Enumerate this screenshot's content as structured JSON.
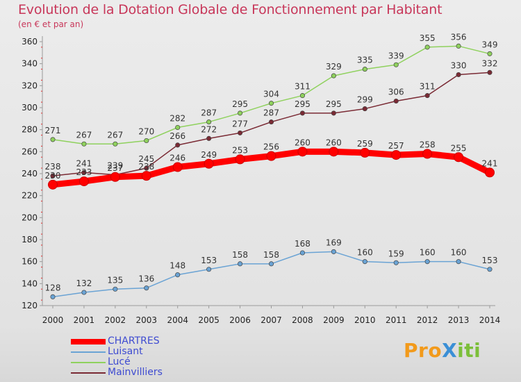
{
  "page": {
    "title": "Evolution de la Dotation Globale de Fonctionnement par Habitant",
    "subtitle": "(en € et par an)",
    "logo": "ProXiti"
  },
  "chart_data": {
    "type": "line",
    "title": "Evolution de la Dotation Globale de Fonctionnement par Habitant",
    "subtitle": "(en € et par an)",
    "x": [
      2000,
      2001,
      2002,
      2003,
      2004,
      2005,
      2006,
      2007,
      2008,
      2009,
      2010,
      2011,
      2012,
      2013,
      2014
    ],
    "ylim": [
      120,
      360
    ],
    "yticks": [
      120,
      140,
      160,
      180,
      200,
      220,
      240,
      260,
      280,
      300,
      320,
      340,
      360
    ],
    "grid": false,
    "legend_position": "bottom-left",
    "series": [
      {
        "name": "CHARTRES",
        "color": "#ff0000",
        "values": [
          230,
          233,
          237,
          238,
          246,
          249,
          253,
          256,
          260,
          260,
          259,
          257,
          258,
          255,
          241
        ]
      },
      {
        "name": "Luisant",
        "color": "#6aa3d4",
        "values": [
          128,
          132,
          135,
          136,
          148,
          153,
          158,
          158,
          168,
          169,
          160,
          159,
          160,
          160,
          153
        ]
      },
      {
        "name": "Lucé",
        "color": "#8fd15d",
        "values": [
          271,
          267,
          267,
          270,
          282,
          287,
          295,
          304,
          311,
          329,
          335,
          339,
          355,
          356,
          349
        ]
      },
      {
        "name": "Mainvilliers",
        "color": "#7a2a34",
        "values": [
          238,
          241,
          239,
          245,
          266,
          272,
          277,
          287,
          295,
          295,
          299,
          306,
          311,
          330,
          332
        ]
      }
    ]
  }
}
